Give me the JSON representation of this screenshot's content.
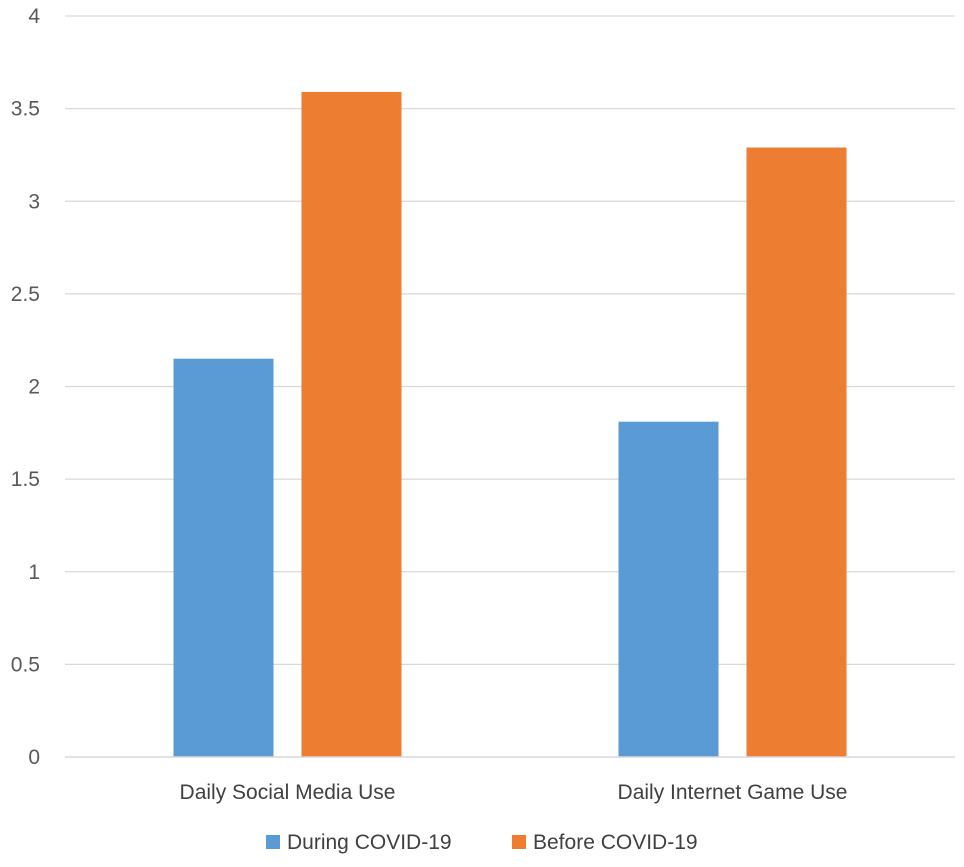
{
  "chart_data": {
    "type": "bar",
    "categories": [
      "Daily Social Media Use",
      "Daily Internet Game Use"
    ],
    "series": [
      {
        "name": "During COVID-19",
        "values": [
          2.15,
          1.81
        ],
        "color": "#5B9BD5"
      },
      {
        "name": "Before COVID-19",
        "values": [
          3.59,
          3.29
        ],
        "color": "#ED7D31"
      }
    ],
    "ylim": [
      0,
      4
    ],
    "yticks": [
      "0",
      "0.5",
      "1",
      "1.5",
      "2",
      "2.5",
      "3",
      "3.5",
      "4"
    ],
    "grid": true,
    "legend_position": "bottom"
  }
}
